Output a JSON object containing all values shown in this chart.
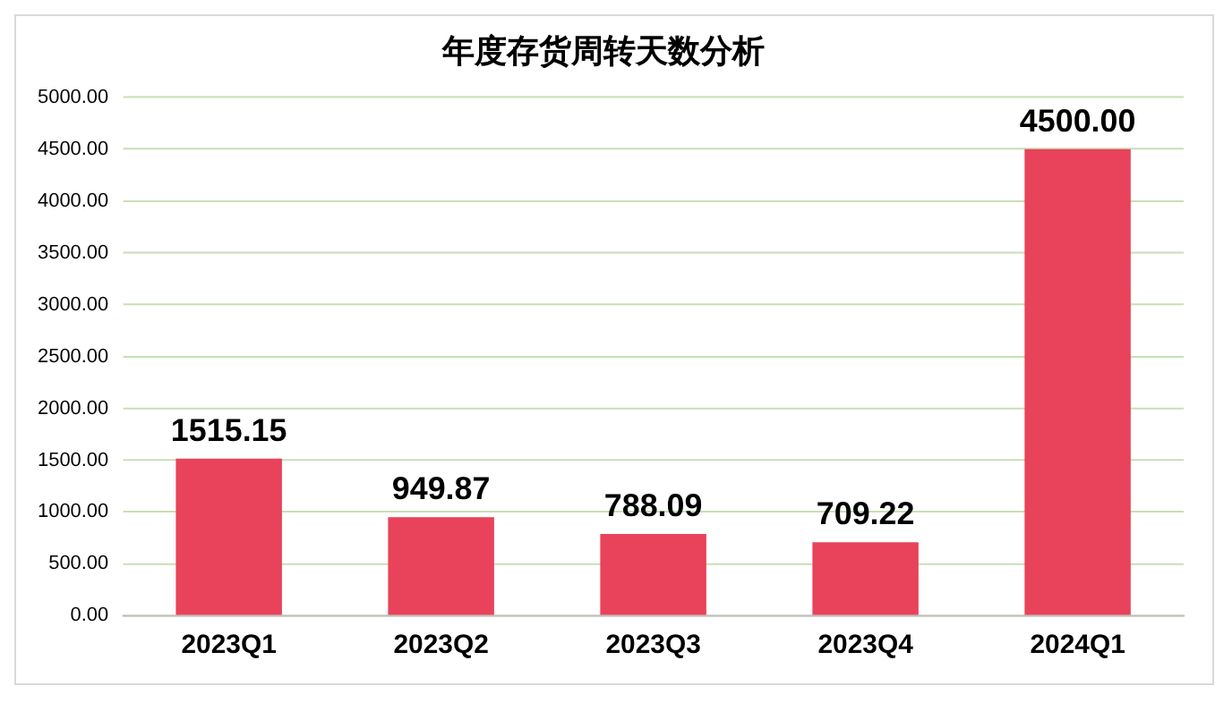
{
  "chart_data": {
    "type": "bar",
    "title": "年度存货周转天数分析",
    "categories": [
      "2023Q1",
      "2023Q2",
      "2023Q3",
      "2023Q4",
      "2024Q1"
    ],
    "values": [
      1515.15,
      949.87,
      788.09,
      709.22,
      4500
    ],
    "value_labels": [
      "1515.15",
      "949.87",
      "788.09",
      "709.22",
      "4500.00"
    ],
    "color": "#e8435a",
    "ylim": [
      0,
      5000
    ],
    "yticks": [
      {
        "value": 0,
        "label": "0.00"
      },
      {
        "value": 500,
        "label": "500.00"
      },
      {
        "value": 1000,
        "label": "1000.00"
      },
      {
        "value": 1500,
        "label": "1500.00"
      },
      {
        "value": 2000,
        "label": "2000.00"
      },
      {
        "value": 2500,
        "label": "2500.00"
      },
      {
        "value": 3000,
        "label": "3000.00"
      },
      {
        "value": 3500,
        "label": "3500.00"
      },
      {
        "value": 4000,
        "label": "4000.00"
      },
      {
        "value": 4500,
        "label": "4500.00"
      },
      {
        "value": 5000,
        "label": "5000.00"
      }
    ],
    "grid": "y",
    "legend": false
  }
}
